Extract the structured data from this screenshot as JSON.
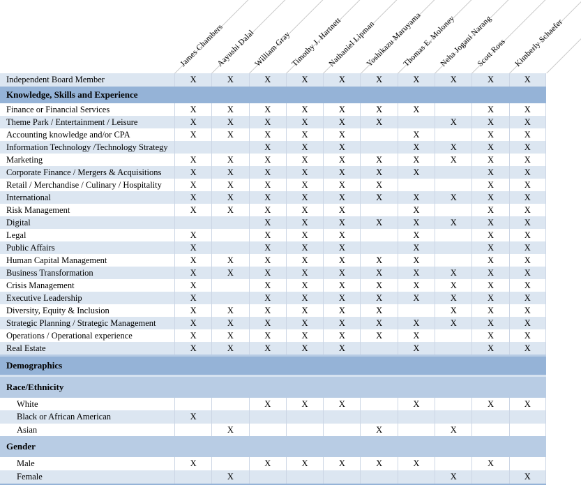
{
  "mark": "X",
  "colors": {
    "section_band": "#95b3d7",
    "subsection_band": "#b8cce4",
    "alt_row": "#dce6f1",
    "grid_line": "#ccd6e5",
    "diagonal_line": "#c9c9c9",
    "bottom_border": "#95b3d7"
  },
  "columns": [
    "James Chambers",
    "Aayushi Dalal",
    "William Gray",
    "Timothy J. Hartnett",
    "Nathaniel Lipman",
    "Yoshikazu Maruyama",
    "Thomas E. Moloney",
    "Neha Jogani Narang",
    "Scott Ross",
    "Kimberly Schaefer"
  ],
  "rows": [
    {
      "label": "Independent Board Member",
      "type": "data",
      "shade": "blue",
      "tall": true,
      "indent": false,
      "cells": [
        "X",
        "X",
        "X",
        "X",
        "X",
        "X",
        "X",
        "X",
        "X",
        "X"
      ]
    },
    {
      "label": "Knowledge, Skills and Experience",
      "type": "section"
    },
    {
      "label": "Finance or Financial Services",
      "type": "data",
      "shade": "white",
      "indent": false,
      "cells": [
        "X",
        "X",
        "X",
        "X",
        "X",
        "X",
        "X",
        "",
        "X",
        "X"
      ]
    },
    {
      "label": "Theme Park / Entertainment / Leisure",
      "type": "data",
      "shade": "blue",
      "indent": false,
      "cells": [
        "X",
        "X",
        "X",
        "X",
        "X",
        "X",
        "",
        "X",
        "X",
        "X"
      ]
    },
    {
      "label": "Accounting knowledge and/or CPA",
      "type": "data",
      "shade": "white",
      "indent": false,
      "cells": [
        "X",
        "X",
        "X",
        "X",
        "X",
        "",
        "X",
        "",
        "X",
        "X"
      ]
    },
    {
      "label": "Information Technology /Technology Strategy",
      "type": "data",
      "shade": "blue",
      "indent": false,
      "cells": [
        "",
        "",
        "X",
        "X",
        "X",
        "",
        "X",
        "X",
        "X",
        "X"
      ]
    },
    {
      "label": "Marketing",
      "type": "data",
      "shade": "white",
      "indent": false,
      "cells": [
        "X",
        "X",
        "X",
        "X",
        "X",
        "X",
        "X",
        "X",
        "X",
        "X"
      ]
    },
    {
      "label": "Corporate Finance / Mergers & Acquisitions",
      "type": "data",
      "shade": "blue",
      "indent": false,
      "cells": [
        "X",
        "X",
        "X",
        "X",
        "X",
        "X",
        "X",
        "",
        "X",
        "X"
      ]
    },
    {
      "label": "Retail / Merchandise / Culinary / Hospitality",
      "type": "data",
      "shade": "white",
      "indent": false,
      "cells": [
        "X",
        "X",
        "X",
        "X",
        "X",
        "X",
        "",
        "",
        "X",
        "X"
      ]
    },
    {
      "label": "International",
      "type": "data",
      "shade": "blue",
      "indent": false,
      "cells": [
        "X",
        "X",
        "X",
        "X",
        "X",
        "X",
        "X",
        "X",
        "X",
        "X"
      ]
    },
    {
      "label": "Risk Management",
      "type": "data",
      "shade": "white",
      "indent": false,
      "cells": [
        "X",
        "X",
        "X",
        "X",
        "X",
        "",
        "X",
        "",
        "X",
        "X"
      ]
    },
    {
      "label": "Digital",
      "type": "data",
      "shade": "blue",
      "indent": false,
      "cells": [
        "",
        "",
        "X",
        "X",
        "X",
        "X",
        "X",
        "X",
        "X",
        "X"
      ]
    },
    {
      "label": "Legal",
      "type": "data",
      "shade": "white",
      "indent": false,
      "cells": [
        "X",
        "",
        "X",
        "X",
        "X",
        "",
        "X",
        "",
        "X",
        "X"
      ]
    },
    {
      "label": "Public Affairs",
      "type": "data",
      "shade": "blue",
      "indent": false,
      "cells": [
        "X",
        "",
        "X",
        "X",
        "X",
        "",
        "X",
        "",
        "X",
        "X"
      ]
    },
    {
      "label": "Human Capital Management",
      "type": "data",
      "shade": "white",
      "indent": false,
      "cells": [
        "X",
        "X",
        "X",
        "X",
        "X",
        "X",
        "X",
        "",
        "X",
        "X"
      ]
    },
    {
      "label": "Business Transformation",
      "type": "data",
      "shade": "blue",
      "indent": false,
      "cells": [
        "X",
        "X",
        "X",
        "X",
        "X",
        "X",
        "X",
        "X",
        "X",
        "X"
      ]
    },
    {
      "label": "Crisis Management",
      "type": "data",
      "shade": "white",
      "indent": false,
      "cells": [
        "X",
        "",
        "X",
        "X",
        "X",
        "X",
        "X",
        "X",
        "X",
        "X"
      ]
    },
    {
      "label": "Executive Leadership",
      "type": "data",
      "shade": "blue",
      "indent": false,
      "cells": [
        "X",
        "",
        "X",
        "X",
        "X",
        "X",
        "X",
        "X",
        "X",
        "X"
      ]
    },
    {
      "label": "Diversity, Equity & Inclusion",
      "type": "data",
      "shade": "white",
      "indent": false,
      "cells": [
        "X",
        "X",
        "X",
        "X",
        "X",
        "X",
        "",
        "X",
        "X",
        "X"
      ]
    },
    {
      "label": "Strategic Planning / Strategic Management",
      "type": "data",
      "shade": "blue",
      "indent": false,
      "cells": [
        "X",
        "X",
        "X",
        "X",
        "X",
        "X",
        "X",
        "X",
        "X",
        "X"
      ]
    },
    {
      "label": "Operations / Operational experience",
      "type": "data",
      "shade": "white",
      "indent": false,
      "cells": [
        "X",
        "X",
        "X",
        "X",
        "X",
        "X",
        "X",
        "",
        "X",
        "X"
      ]
    },
    {
      "label": "Real Estate",
      "type": "data",
      "shade": "blue",
      "indent": false,
      "cells": [
        "X",
        "X",
        "X",
        "X",
        "X",
        "",
        "X",
        "",
        "X",
        "X"
      ]
    },
    {
      "label": "Demographics",
      "type": "section-tall"
    },
    {
      "label": "Race/Ethnicity",
      "type": "subsection"
    },
    {
      "label": "White",
      "type": "data",
      "shade": "white",
      "indent": true,
      "cells": [
        "",
        "",
        "X",
        "X",
        "X",
        "",
        "X",
        "",
        "X",
        "X"
      ]
    },
    {
      "label": "Black or African American",
      "type": "data",
      "shade": "blue",
      "tall": true,
      "indent": true,
      "cells": [
        "X",
        "",
        "",
        "",
        "",
        "",
        "",
        "",
        "",
        ""
      ]
    },
    {
      "label": "Asian",
      "type": "data",
      "shade": "white",
      "indent": true,
      "cells": [
        "",
        "X",
        "",
        "",
        "",
        "X",
        "",
        "X",
        "",
        ""
      ]
    },
    {
      "label": "Gender",
      "type": "subsection"
    },
    {
      "label": "Male",
      "type": "data",
      "shade": "white",
      "tall": true,
      "indent": true,
      "cells": [
        "X",
        "",
        "X",
        "X",
        "X",
        "X",
        "X",
        "",
        "X",
        ""
      ]
    },
    {
      "label": "Female",
      "type": "data",
      "shade": "blue",
      "tall": true,
      "indent": true,
      "cells": [
        "",
        "X",
        "",
        "",
        "",
        "",
        "",
        "X",
        "",
        "X"
      ]
    }
  ]
}
